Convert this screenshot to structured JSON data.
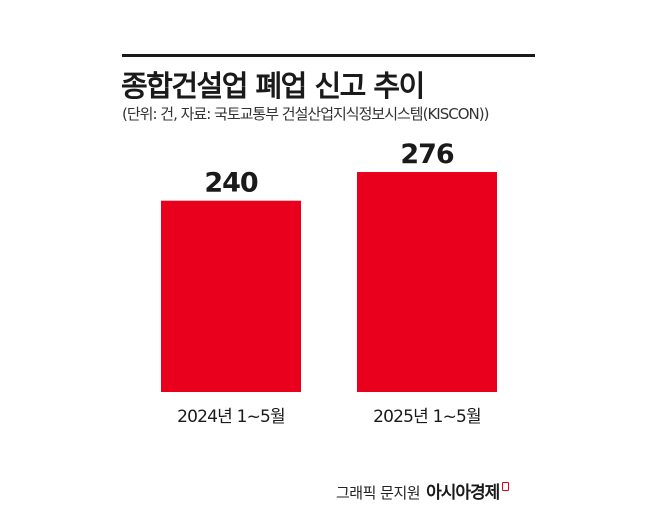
{
  "colors": {
    "bar": "#e8001c",
    "text": "#1a1a1a",
    "brand_mark": "#e8001c"
  },
  "header": {
    "title": "종합건설업 폐업 신고 추이",
    "subtitle": "(단위: 건, 자료: 국토교통부 건설산업지식정보시스템(KISCON))"
  },
  "chart_data": {
    "type": "bar",
    "title": "종합건설업 폐업 신고 추이",
    "subtitle": "(단위: 건, 자료: 국토교통부 건설산업지식정보시스템(KISCON))",
    "categories": [
      "2024년 1~5월",
      "2025년 1~5월"
    ],
    "values": [
      240,
      276
    ],
    "xlabel": "",
    "ylabel": "",
    "ylim": [
      0,
      276
    ],
    "grid": false,
    "legend": "none",
    "data_labels": true
  },
  "footer": {
    "credit_label": "그래픽 문지원",
    "brand": "아시아경제",
    "brand_mark_icon": "brand-corner-icon"
  }
}
